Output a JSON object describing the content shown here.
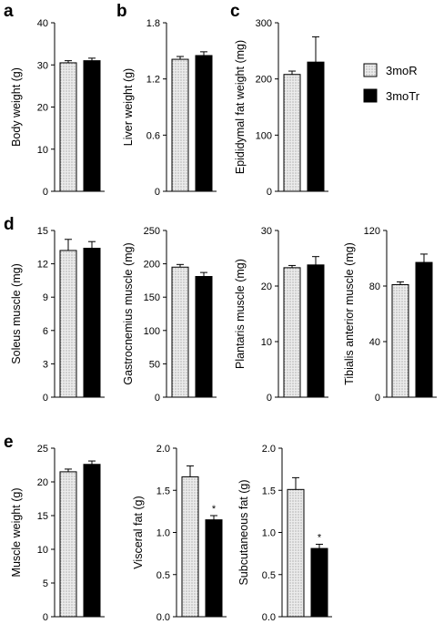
{
  "legend": {
    "entries": [
      {
        "label": "3moR",
        "fill": "dotted-light-gray"
      },
      {
        "label": "3moTr",
        "fill": "black"
      }
    ]
  },
  "colors": {
    "bar_r": "#e4e4e4",
    "bar_tr": "#000000",
    "axis": "#000000"
  },
  "chart_data": [
    {
      "panel": "a",
      "type": "bar",
      "ylabel": "Body weight (g)",
      "ylim": [
        0,
        40
      ],
      "yticks": [
        "0",
        "10",
        "20",
        "30",
        "40"
      ],
      "categories": [
        "3moR",
        "3moTr"
      ],
      "values": [
        30.5,
        31.0
      ],
      "errors": [
        0.5,
        0.6
      ],
      "sig": [
        "",
        ""
      ]
    },
    {
      "panel": "b",
      "type": "bar",
      "ylabel": "Liver weight (g)",
      "ylim": [
        0,
        1.8
      ],
      "yticks": [
        "0",
        "0.6",
        "1.2",
        "1.8"
      ],
      "categories": [
        "3moR",
        "3moTr"
      ],
      "values": [
        1.41,
        1.45
      ],
      "errors": [
        0.03,
        0.04
      ],
      "sig": [
        "",
        ""
      ]
    },
    {
      "panel": "c",
      "type": "bar",
      "ylabel": "Epididymal fat weight (mg)",
      "ylim": [
        0,
        300
      ],
      "yticks": [
        "0",
        "100",
        "200",
        "300"
      ],
      "categories": [
        "3moR",
        "3moTr"
      ],
      "values": [
        208,
        230
      ],
      "errors": [
        6,
        45
      ],
      "sig": [
        "",
        ""
      ]
    },
    {
      "panel": "d",
      "type": "bar",
      "ylabel": "Soleus muscle (mg)",
      "ylim": [
        0,
        15
      ],
      "yticks": [
        "0",
        "3",
        "6",
        "9",
        "12",
        "15"
      ],
      "categories": [
        "3moR",
        "3moTr"
      ],
      "values": [
        13.2,
        13.4
      ],
      "errors": [
        1.0,
        0.6
      ],
      "sig": [
        "",
        ""
      ]
    },
    {
      "panel": "",
      "type": "bar",
      "ylabel": "Gastrocnemius muscle (mg)",
      "ylim": [
        0,
        250
      ],
      "yticks": [
        "0",
        "50",
        "100",
        "150",
        "200",
        "250"
      ],
      "categories": [
        "3moR",
        "3moTr"
      ],
      "values": [
        195,
        181
      ],
      "errors": [
        4,
        6
      ],
      "sig": [
        "",
        ""
      ]
    },
    {
      "panel": "",
      "type": "bar",
      "ylabel": "Plantaris muscle (mg)",
      "ylim": [
        0,
        30
      ],
      "yticks": [
        "0",
        "10",
        "20",
        "30"
      ],
      "categories": [
        "3moR",
        "3moTr"
      ],
      "values": [
        23.3,
        23.8
      ],
      "errors": [
        0.4,
        1.5
      ],
      "sig": [
        "",
        ""
      ]
    },
    {
      "panel": "",
      "type": "bar",
      "ylabel": "Tibialis anterior muscle (mg)",
      "ylim": [
        0,
        120
      ],
      "yticks": [
        "0",
        "40",
        "80",
        "120"
      ],
      "categories": [
        "3moR",
        "3moTr"
      ],
      "values": [
        81,
        97
      ],
      "errors": [
        2,
        6
      ],
      "sig": [
        "",
        ""
      ]
    },
    {
      "panel": "e",
      "type": "bar",
      "ylabel": "Muscle weight (g)",
      "ylim": [
        0,
        25
      ],
      "yticks": [
        "0",
        "5",
        "10",
        "15",
        "20",
        "25"
      ],
      "categories": [
        "3moR",
        "3moTr"
      ],
      "values": [
        21.5,
        22.6
      ],
      "errors": [
        0.4,
        0.5
      ],
      "sig": [
        "",
        ""
      ]
    },
    {
      "panel": "",
      "type": "bar",
      "ylabel": "Visceral fat (g)",
      "ylim": [
        0,
        2.0
      ],
      "yticks": [
        "0.0",
        "0.5",
        "1.0",
        "1.5",
        "2.0"
      ],
      "categories": [
        "3moR",
        "3moTr"
      ],
      "values": [
        1.66,
        1.15
      ],
      "errors": [
        0.13,
        0.05
      ],
      "sig": [
        "",
        "*"
      ]
    },
    {
      "panel": "",
      "type": "bar",
      "ylabel": "Subcutaneous fat (g)",
      "ylim": [
        0,
        2.0
      ],
      "yticks": [
        "0.0",
        "0.5",
        "1.0",
        "1.5",
        "2.0"
      ],
      "categories": [
        "3moR",
        "3moTr"
      ],
      "values": [
        1.51,
        0.81
      ],
      "errors": [
        0.14,
        0.05
      ],
      "sig": [
        "",
        "*"
      ]
    }
  ]
}
